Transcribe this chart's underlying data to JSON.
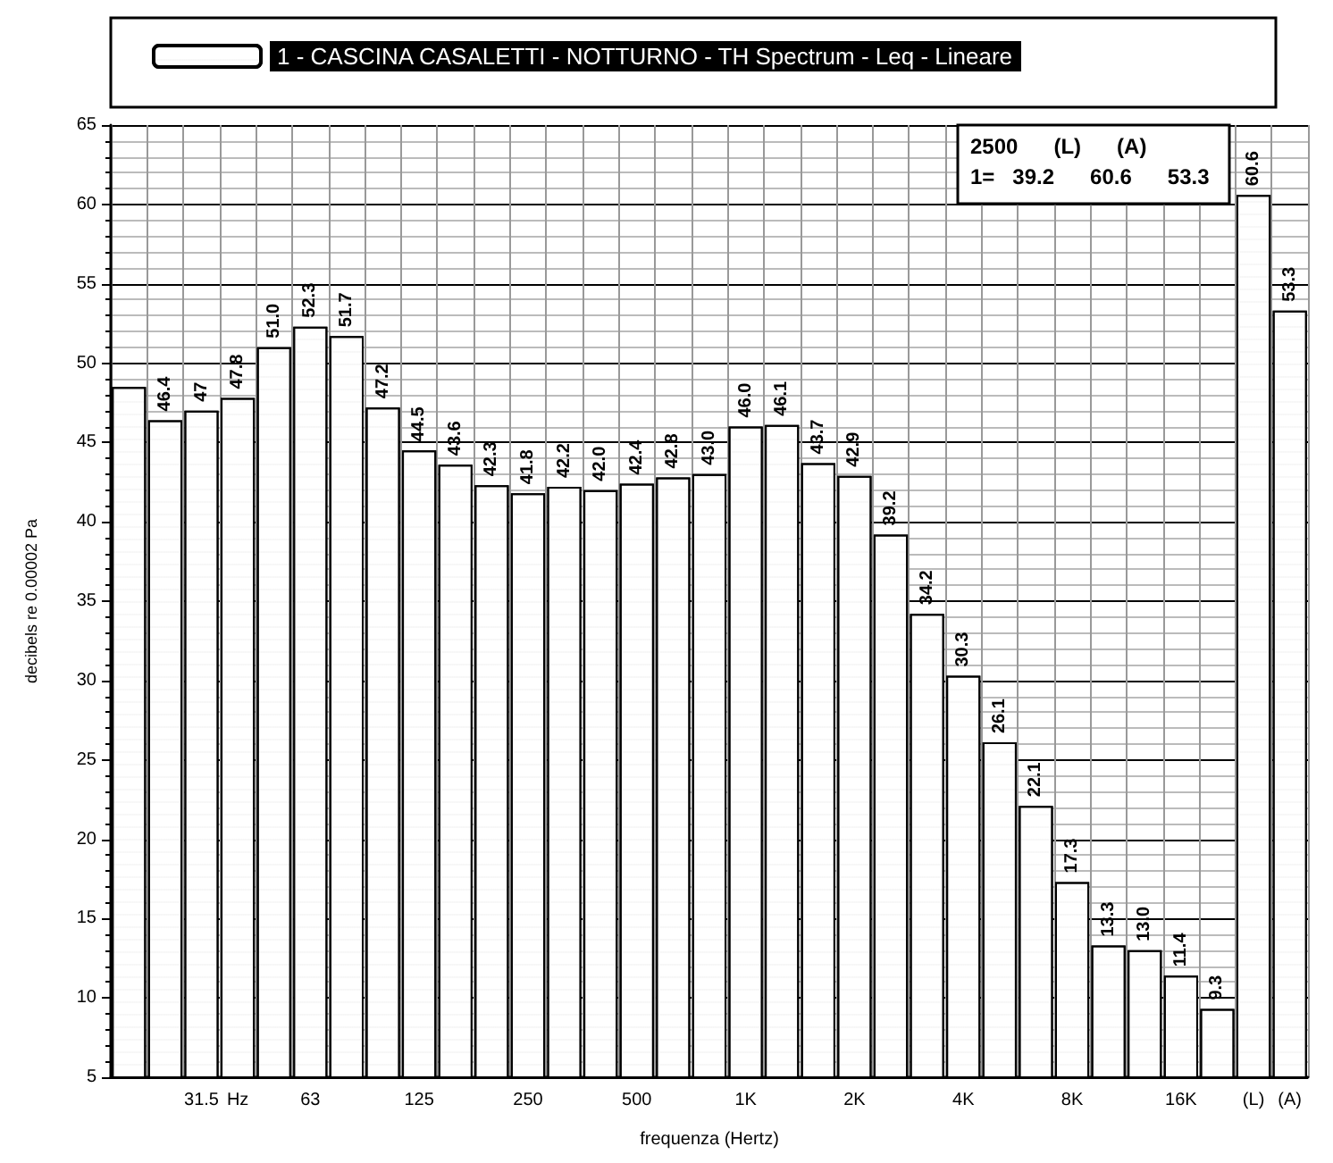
{
  "chart_data": {
    "type": "bar",
    "categories": [
      null,
      null,
      "31.5",
      "Hz",
      null,
      "63",
      null,
      null,
      "125",
      null,
      null,
      "250",
      null,
      null,
      "500",
      null,
      null,
      "1K",
      null,
      null,
      "2K",
      null,
      null,
      "4K",
      null,
      null,
      "8K",
      null,
      null,
      "16K",
      null,
      "(L)",
      "(A)"
    ],
    "series": [
      {
        "name": "1 - CASCINA CASALETTI - NOTTURNO - TH Spectrum - Leq - Lineare",
        "color": "#ffffff",
        "values": [
          48.5,
          46.4,
          47.0,
          47.8,
          51.0,
          52.3,
          51.7,
          47.2,
          44.5,
          43.6,
          42.3,
          41.8,
          42.2,
          42.0,
          42.4,
          42.8,
          43.0,
          46.0,
          46.1,
          43.7,
          42.9,
          39.2,
          34.2,
          30.3,
          26.1,
          22.1,
          17.3,
          13.3,
          13.0,
          11.4,
          9.3,
          60.6,
          53.3
        ],
        "value_labels": [
          null,
          "46.4",
          "47",
          "47.8",
          "51.0",
          "52.3",
          "51.7",
          "47.2",
          "44.5",
          "43.6",
          "42.3",
          "41.8",
          "42.2",
          "42.0",
          "42.4",
          "42.8",
          "43.0",
          "46.0",
          "46.1",
          "43.7",
          "42.9",
          "39.2",
          "34.2",
          "30.3",
          "26.1",
          "22.1",
          "17.3",
          "13.3",
          "13.0",
          "11.4",
          "9.3",
          "60.6",
          "53.3"
        ]
      }
    ],
    "xlabel": "frequenza (Hertz)",
    "ylabel": "decibels re 0.00002 Pa",
    "ylim": [
      5,
      65
    ],
    "yticks": [
      5,
      10,
      15,
      20,
      25,
      30,
      35,
      40,
      45,
      50,
      55,
      60,
      65
    ],
    "grid": true,
    "legend": "top",
    "annotations": [
      "2500      (L)      (A)",
      "1=   39.2      60.6      53.3"
    ]
  }
}
